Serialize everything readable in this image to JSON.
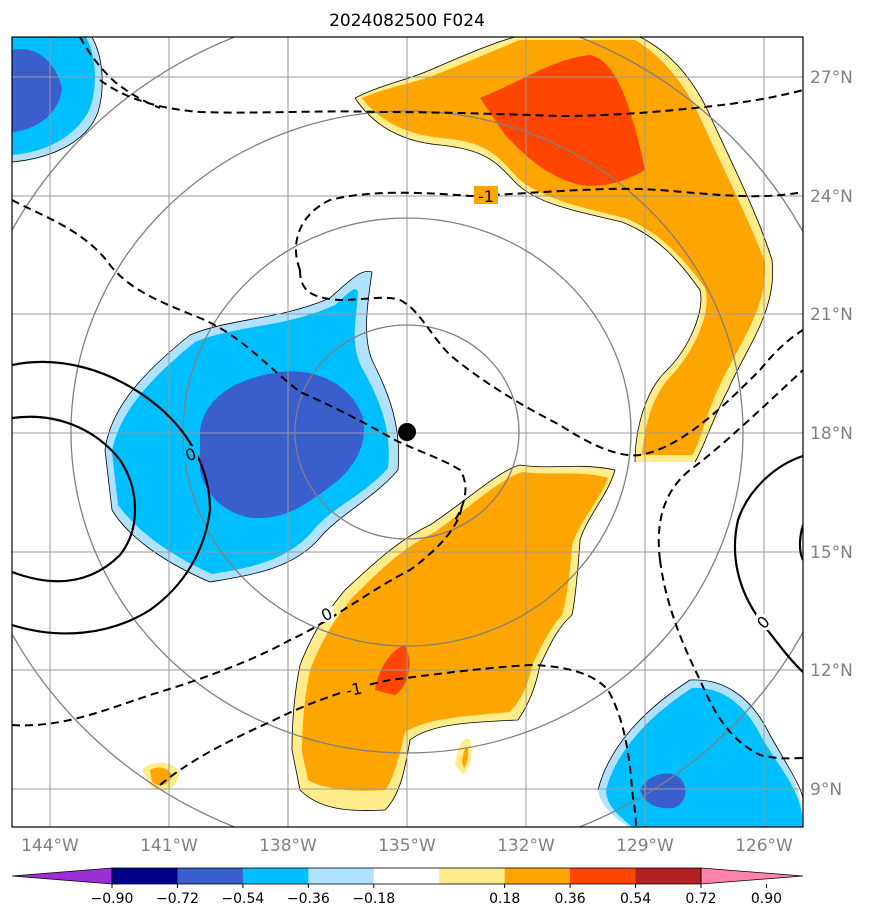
{
  "title": "2024082500 F024",
  "map": {
    "lon_ticks": [
      "144°W",
      "141°W",
      "138°W",
      "135°W",
      "132°W",
      "129°W",
      "126°W"
    ],
    "lat_ticks": [
      "27°N",
      "24°N",
      "21°N",
      "18°N",
      "15°N",
      "12°N",
      "9°N"
    ],
    "contour_labels": [
      "0",
      "0",
      "0",
      "-1",
      "-1"
    ],
    "center_marker": "storm-center-dot"
  },
  "colorbar": {
    "ticks": [
      "−0.90",
      "−0.72",
      "−0.54",
      "−0.36",
      "−0.18",
      "0.18",
      "0.36",
      "0.54",
      "0.72",
      "0.90"
    ],
    "colors": [
      "#9b30d9",
      "#00008b",
      "#3a5fcd",
      "#00bfff",
      "#b0e2ff",
      "#ffffff",
      "#ffec8b",
      "#ffa500",
      "#ff4500",
      "#b22222",
      "#ff82ab"
    ]
  }
}
